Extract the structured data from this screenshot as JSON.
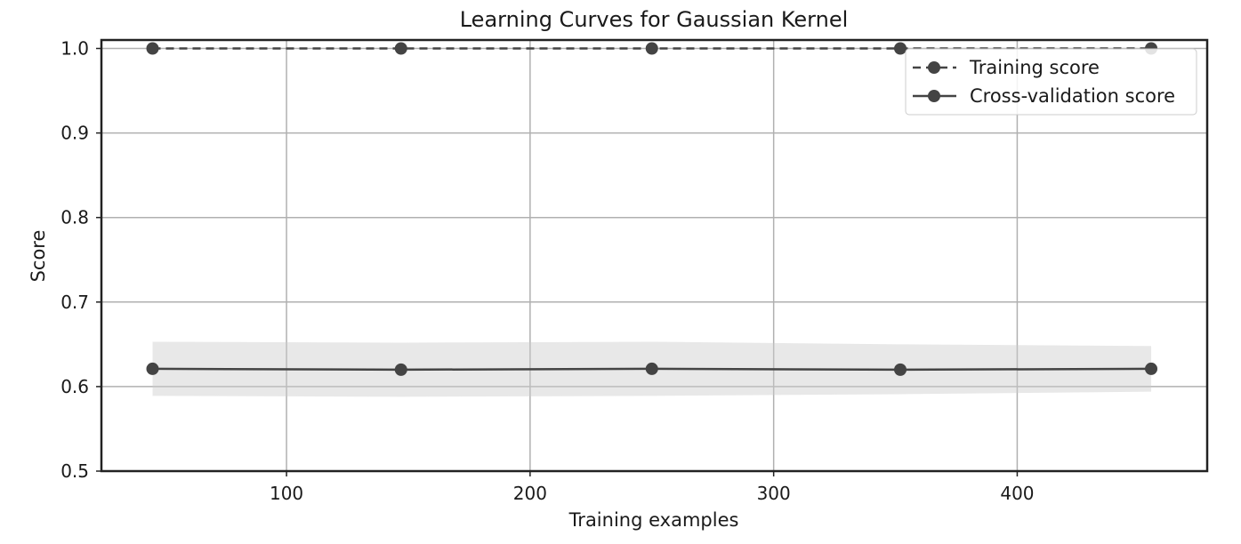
{
  "chart_data": {
    "type": "line",
    "title": "Learning Curves for Gaussian Kernel",
    "xlabel": "Training examples",
    "ylabel": "Score",
    "xlim": [
      24,
      478
    ],
    "ylim": [
      0.5,
      1.01
    ],
    "xticks": [
      100,
      200,
      300,
      400
    ],
    "yticks": [
      0.5,
      0.6,
      0.7,
      0.8,
      0.9,
      1.0
    ],
    "ytick_labels": [
      "0.5",
      "0.6",
      "0.7",
      "0.8",
      "0.9",
      "1.0"
    ],
    "grid": true,
    "legend_position": "top-right",
    "x": [
      45,
      147,
      250,
      352,
      455
    ],
    "series": [
      {
        "name": "Training score",
        "style": "dashed",
        "marker": "circle",
        "color": "#444444",
        "values": [
          1.0,
          1.0,
          1.0,
          1.0,
          1.0
        ],
        "band_lower": [
          1.0,
          1.0,
          1.0,
          1.0,
          1.0
        ],
        "band_upper": [
          1.0,
          1.0,
          1.0,
          1.0,
          1.0
        ]
      },
      {
        "name": "Cross-validation score",
        "style": "solid",
        "marker": "circle",
        "color": "#444444",
        "values": [
          0.621,
          0.62,
          0.621,
          0.62,
          0.621
        ],
        "band_lower": [
          0.589,
          0.588,
          0.589,
          0.591,
          0.594
        ],
        "band_upper": [
          0.653,
          0.652,
          0.653,
          0.65,
          0.648
        ]
      }
    ],
    "colors": {
      "line": "#444444",
      "grid": "#b0b0b0",
      "band": "#cccccc",
      "axes": "#222222"
    }
  }
}
